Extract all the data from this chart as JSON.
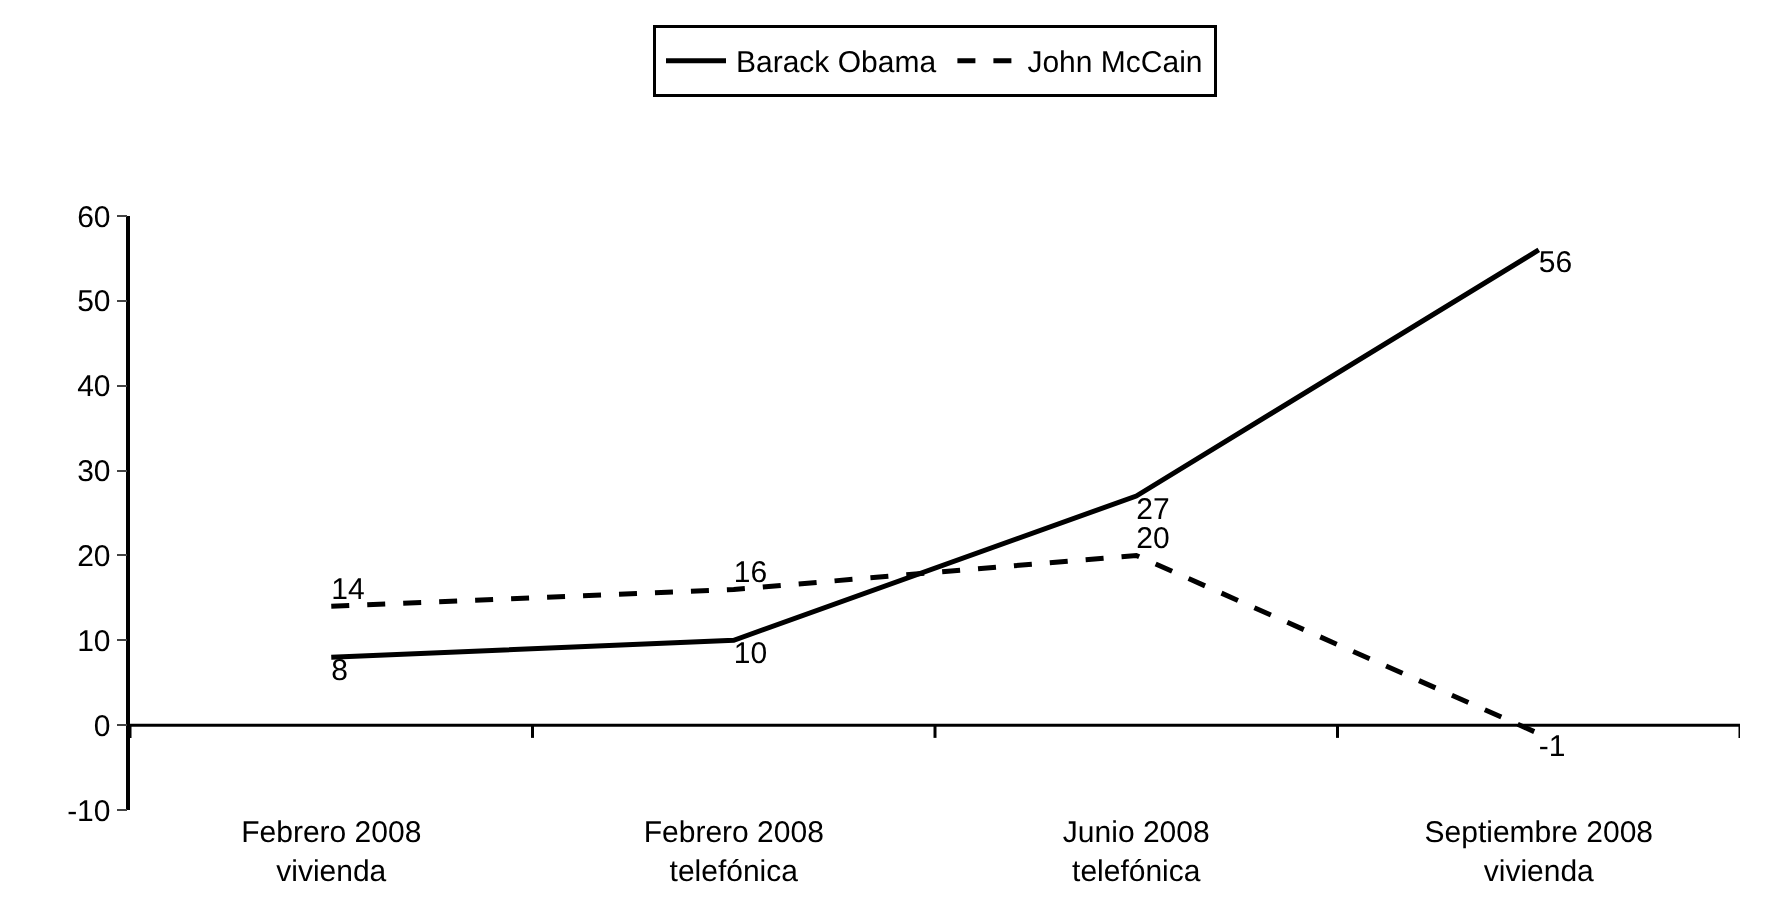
{
  "chart_data": {
    "type": "line",
    "categories": [
      "Febrero 2008\nvivienda",
      "Febrero 2008\ntelefónica",
      "Junio 2008\ntelefónica",
      "Septiembre 2008\nvivienda"
    ],
    "series": [
      {
        "name": "Barack Obama",
        "color": "#000000",
        "line_style": "solid",
        "values": [
          8,
          10,
          27,
          56
        ]
      },
      {
        "name": "John McCain",
        "color": "#000000",
        "line_style": "dashed",
        "values": [
          14,
          16,
          20,
          -1
        ]
      }
    ],
    "ylim": [
      -10,
      60
    ],
    "yticks": [
      -10,
      0,
      10,
      20,
      30,
      40,
      50,
      60
    ],
    "data_labels": true,
    "legend": "top",
    "marker": "none"
  }
}
